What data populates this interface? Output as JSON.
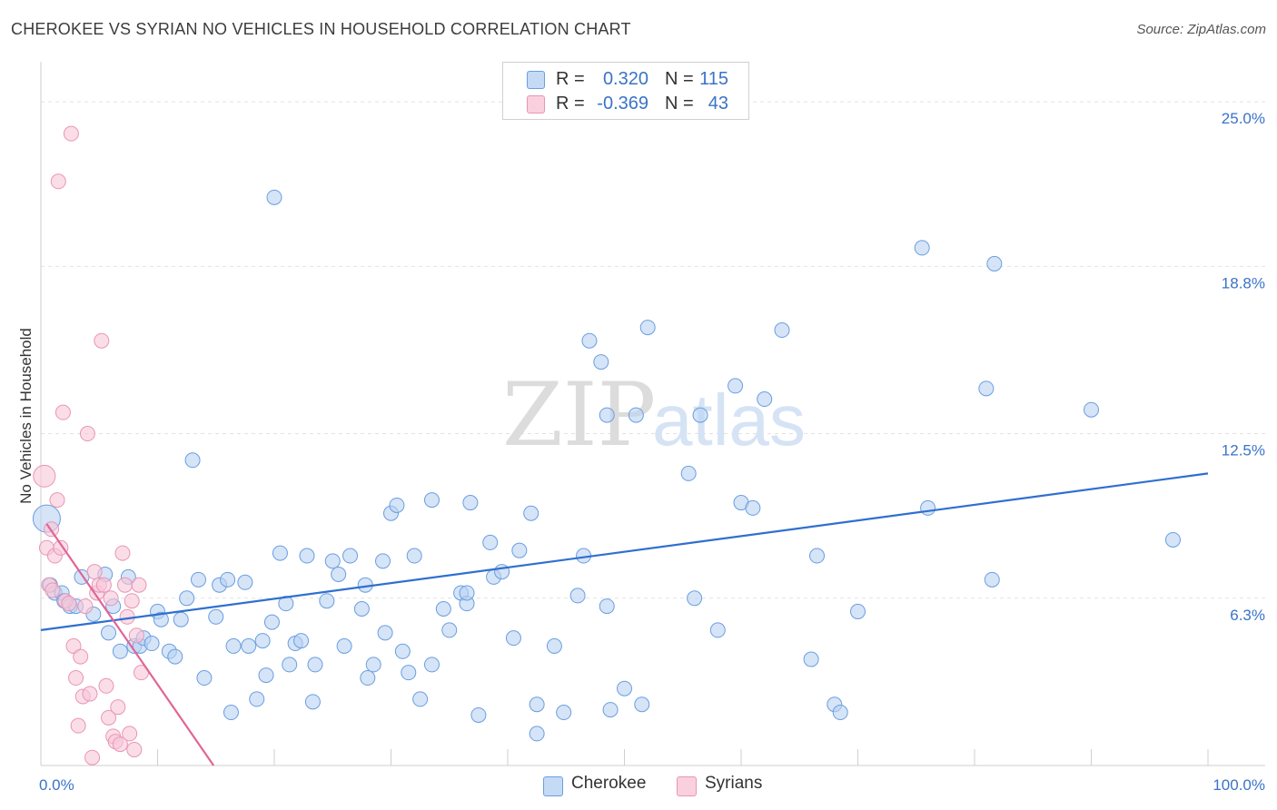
{
  "title": "CHEROKEE VS SYRIAN NO VEHICLES IN HOUSEHOLD CORRELATION CHART",
  "source": "Source: ZipAtlas.com",
  "legend": {
    "rows": [
      {
        "r_label": "R =",
        "r_value": "0.320",
        "n_label": "N =",
        "n_value": "115"
      },
      {
        "r_label": "R =",
        "r_value": "-0.369",
        "n_label": "N =",
        "n_value": "43"
      }
    ]
  },
  "bottom_legend": {
    "cherokee": "Cherokee",
    "syrians": "Syrians"
  },
  "colors": {
    "blue_fill": "#aac8ef",
    "blue_stroke": "#6a9ee0",
    "blue_line": "#2f6fd0",
    "pink_fill": "#f6bfd2",
    "pink_stroke": "#e896b4",
    "pink_line": "#e06595",
    "axis_label": "#3a73c8"
  },
  "chart_data": {
    "type": "scatter",
    "title": "CHEROKEE VS SYRIAN NO VEHICLES IN HOUSEHOLD CORRELATION CHART",
    "xlabel": "",
    "ylabel": "No Vehicles in Household",
    "xlim": [
      0,
      100
    ],
    "ylim": [
      0,
      26.2
    ],
    "y_ticks": [
      6.3,
      12.5,
      18.8,
      25.0
    ],
    "y_tick_labels": [
      "6.3%",
      "12.5%",
      "18.8%",
      "25.0%"
    ],
    "x_tick_labels": [
      "0.0%",
      "100.0%"
    ],
    "watermark": {
      "zip": "ZIP",
      "atlas": "atlas"
    },
    "series": [
      {
        "name": "Cherokee",
        "color": "#6a9ee0",
        "trend": {
          "x": [
            0,
            100
          ],
          "y": [
            5.1,
            11.0
          ]
        },
        "points": [
          [
            0.5,
            9.3
          ],
          [
            0.8,
            6.8
          ],
          [
            1.2,
            6.5
          ],
          [
            1.8,
            6.5
          ],
          [
            2.0,
            6.2
          ],
          [
            2.5,
            6.0
          ],
          [
            3.0,
            6.0
          ],
          [
            3.5,
            7.1
          ],
          [
            4.5,
            5.7
          ],
          [
            5.5,
            7.2
          ],
          [
            5.8,
            5.0
          ],
          [
            6.2,
            6.0
          ],
          [
            6.8,
            4.3
          ],
          [
            7.5,
            7.1
          ],
          [
            8.0,
            4.5
          ],
          [
            8.5,
            4.5
          ],
          [
            8.8,
            4.8
          ],
          [
            9.5,
            4.6
          ],
          [
            10.0,
            5.8
          ],
          [
            10.3,
            5.5
          ],
          [
            11.0,
            4.3
          ],
          [
            11.5,
            4.1
          ],
          [
            12.0,
            5.5
          ],
          [
            12.5,
            6.3
          ],
          [
            13.0,
            11.5
          ],
          [
            13.5,
            7.0
          ],
          [
            14.0,
            3.3
          ],
          [
            15.0,
            5.6
          ],
          [
            15.3,
            6.8
          ],
          [
            16.0,
            7.0
          ],
          [
            16.3,
            2.0
          ],
          [
            16.5,
            4.5
          ],
          [
            17.5,
            6.9
          ],
          [
            17.8,
            4.5
          ],
          [
            18.5,
            2.5
          ],
          [
            19.0,
            4.7
          ],
          [
            19.3,
            3.4
          ],
          [
            19.8,
            5.4
          ],
          [
            20.0,
            21.4
          ],
          [
            20.5,
            8.0
          ],
          [
            21.0,
            6.1
          ],
          [
            21.3,
            3.8
          ],
          [
            21.8,
            4.6
          ],
          [
            22.3,
            4.7
          ],
          [
            22.8,
            7.9
          ],
          [
            23.3,
            2.4
          ],
          [
            23.5,
            3.8
          ],
          [
            24.5,
            6.2
          ],
          [
            25.0,
            7.7
          ],
          [
            25.5,
            7.2
          ],
          [
            26.0,
            4.5
          ],
          [
            26.5,
            7.9
          ],
          [
            27.5,
            5.9
          ],
          [
            27.8,
            6.8
          ],
          [
            28.0,
            3.3
          ],
          [
            28.5,
            3.8
          ],
          [
            29.3,
            7.7
          ],
          [
            29.5,
            5.0
          ],
          [
            30.0,
            9.5
          ],
          [
            30.5,
            9.8
          ],
          [
            31.0,
            4.3
          ],
          [
            31.5,
            3.5
          ],
          [
            32.0,
            7.9
          ],
          [
            32.5,
            2.5
          ],
          [
            33.5,
            10.0
          ],
          [
            33.5,
            3.8
          ],
          [
            34.5,
            5.9
          ],
          [
            35.0,
            5.1
          ],
          [
            36.0,
            6.5
          ],
          [
            36.5,
            6.1
          ],
          [
            36.8,
            9.9
          ],
          [
            37.5,
            1.9
          ],
          [
            38.5,
            8.4
          ],
          [
            38.8,
            7.1
          ],
          [
            39.5,
            7.3
          ],
          [
            40.5,
            4.8
          ],
          [
            41.0,
            8.1
          ],
          [
            42.0,
            9.5
          ],
          [
            42.5,
            2.3
          ],
          [
            42.5,
            1.2
          ],
          [
            44.0,
            4.5
          ],
          [
            44.8,
            2.0
          ],
          [
            46.0,
            6.4
          ],
          [
            48.5,
            6.0
          ],
          [
            47.0,
            16.0
          ],
          [
            48.0,
            15.2
          ],
          [
            48.5,
            13.2
          ],
          [
            48.8,
            2.1
          ],
          [
            50.0,
            2.9
          ],
          [
            51.0,
            13.2
          ],
          [
            51.5,
            2.3
          ],
          [
            52.0,
            16.5
          ],
          [
            55.5,
            11.0
          ],
          [
            56.0,
            6.3
          ],
          [
            58.0,
            5.1
          ],
          [
            59.5,
            14.3
          ],
          [
            60.0,
            9.9
          ],
          [
            61.0,
            9.7
          ],
          [
            62.0,
            13.8
          ],
          [
            63.5,
            16.4
          ],
          [
            66.0,
            4.0
          ],
          [
            66.5,
            7.9
          ],
          [
            68.0,
            2.3
          ],
          [
            68.5,
            2.0
          ],
          [
            70.0,
            5.8
          ],
          [
            75.5,
            19.5
          ],
          [
            76.0,
            9.7
          ],
          [
            81.0,
            14.2
          ],
          [
            81.5,
            7.0
          ],
          [
            81.7,
            18.9
          ],
          [
            90.0,
            13.4
          ],
          [
            97.0,
            8.5
          ],
          [
            36.5,
            6.5
          ],
          [
            46.5,
            7.9
          ],
          [
            56.5,
            13.2
          ]
        ]
      },
      {
        "name": "Syrians",
        "color": "#e896b4",
        "trend": {
          "x": [
            0.5,
            14.8
          ],
          "y": [
            9.1,
            0.0
          ]
        },
        "points": [
          [
            0.3,
            10.9
          ],
          [
            0.5,
            8.2
          ],
          [
            0.7,
            6.8
          ],
          [
            0.9,
            8.9
          ],
          [
            1.0,
            6.6
          ],
          [
            1.2,
            7.9
          ],
          [
            1.4,
            10.0
          ],
          [
            1.5,
            22.0
          ],
          [
            1.7,
            8.2
          ],
          [
            1.9,
            13.3
          ],
          [
            2.1,
            6.2
          ],
          [
            2.4,
            6.1
          ],
          [
            2.6,
            23.8
          ],
          [
            2.8,
            4.5
          ],
          [
            3.0,
            3.3
          ],
          [
            3.2,
            1.5
          ],
          [
            3.4,
            4.1
          ],
          [
            3.6,
            2.6
          ],
          [
            3.8,
            6.0
          ],
          [
            4.0,
            12.5
          ],
          [
            4.2,
            2.7
          ],
          [
            4.4,
            0.3
          ],
          [
            4.6,
            7.3
          ],
          [
            4.8,
            6.5
          ],
          [
            5.0,
            6.8
          ],
          [
            5.2,
            16.0
          ],
          [
            5.4,
            6.8
          ],
          [
            5.6,
            3.0
          ],
          [
            5.8,
            1.8
          ],
          [
            6.0,
            6.3
          ],
          [
            6.2,
            1.1
          ],
          [
            6.4,
            0.9
          ],
          [
            6.6,
            2.2
          ],
          [
            6.8,
            0.8
          ],
          [
            7.0,
            8.0
          ],
          [
            7.2,
            6.8
          ],
          [
            7.4,
            5.6
          ],
          [
            7.6,
            1.2
          ],
          [
            7.8,
            6.2
          ],
          [
            8.0,
            0.6
          ],
          [
            8.2,
            4.9
          ],
          [
            8.4,
            6.8
          ],
          [
            8.6,
            3.5
          ]
        ]
      }
    ]
  }
}
